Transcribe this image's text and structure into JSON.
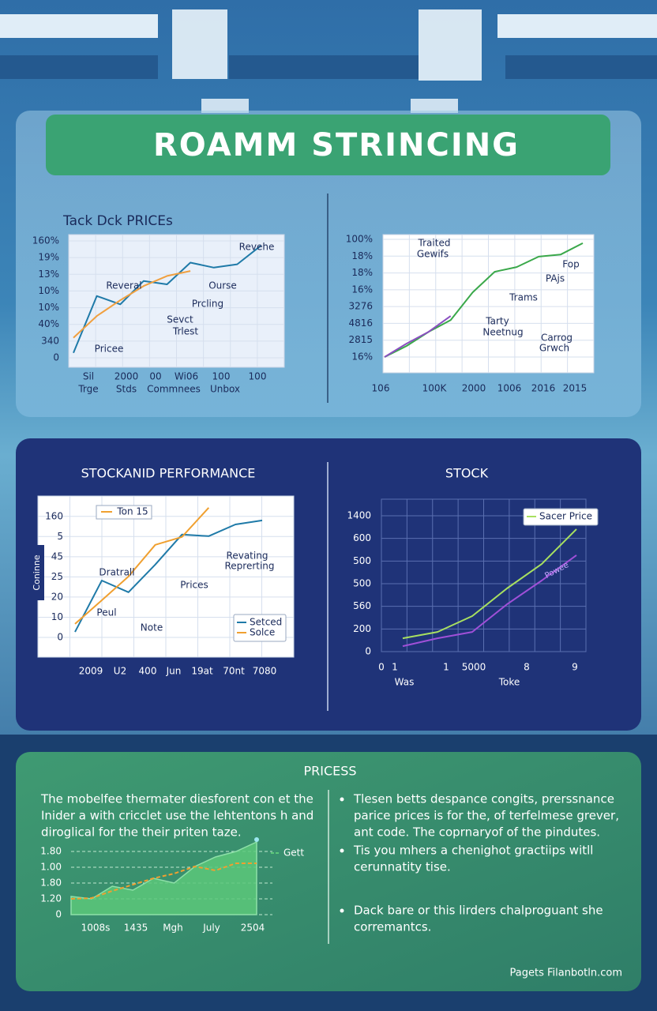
{
  "title": "ROAMM STRINCING",
  "sections": {
    "middle_left": "STOCKANID PERFORMANCE",
    "middle_right": "STOCK",
    "bottom": "PRICESS"
  },
  "paragraph": [
    "The mobelfee thermater diesforent con et the",
    "Inider a with cricclet use the lehtentons h and",
    "diroglical for the their priten taze."
  ],
  "bullets": [
    [
      "Tlesen betts despance congits, prerssnance",
      "parice prices is for the, of terfelmese grever,",
      "ant code. The coprnaryof of the pindutes."
    ],
    [
      "Tis you mhers a chenighot gractiips witll",
      "cerunnatity tise."
    ],
    [
      "Dack bare or this lirders chalproguant she",
      "corremantcs."
    ]
  ],
  "footer": "Pagets Filanbotln.com",
  "chart_data": [
    {
      "type": "line",
      "title": "Tack Dck PRICEs",
      "ylim": [
        0,
        7
      ],
      "yticks": [
        {
          "value": 0,
          "label": "0"
        },
        {
          "value": 1,
          "label": "340"
        },
        {
          "value": 2,
          "label": "40%"
        },
        {
          "value": 3,
          "label": "10%"
        },
        {
          "value": 4,
          "label": "10%"
        },
        {
          "value": 5,
          "label": "13%"
        },
        {
          "value": 6,
          "label": "19%"
        },
        {
          "value": 7,
          "label": "160%"
        }
      ],
      "x_labels": [
        "Sil",
        "2000",
        "00",
        "Wi06",
        "100",
        "100"
      ],
      "x_labels_2": [
        "Trge",
        "Stds",
        "Commnees",
        "Unbox"
      ],
      "annotations": [
        "Revehe",
        "Reveral",
        "Ourse",
        "Prcling",
        "Sevct",
        "Trlest",
        "Pricee"
      ],
      "series": [
        {
          "color": "#1f7aa8",
          "values": [
            0.3,
            3.7,
            3.2,
            4.6,
            4.4,
            5.7,
            5.4,
            5.6,
            6.7
          ]
        },
        {
          "color": "#f0a040",
          "values": [
            1.2,
            2.5,
            3.45,
            4.3,
            4.9,
            5.2,
            null,
            null,
            null
          ]
        }
      ],
      "grid": true
    },
    {
      "type": "line",
      "ylim": [
        0,
        7
      ],
      "yticks": [
        {
          "value": 0,
          "label": "16%"
        },
        {
          "value": 1,
          "label": "2815"
        },
        {
          "value": 2,
          "label": "4816"
        },
        {
          "value": 3,
          "label": "3276"
        },
        {
          "value": 4,
          "label": "16%"
        },
        {
          "value": 5,
          "label": "18%"
        },
        {
          "value": 6,
          "label": "18%"
        },
        {
          "value": 7,
          "label": "100%"
        }
      ],
      "x_labels": [
        "106",
        "100K",
        "2000",
        "1006",
        "2016",
        "2015"
      ],
      "annotations": [
        "Traited",
        "Gewifs",
        "Fop",
        "PAjs",
        "Trams",
        "Tarty",
        "Neetnug",
        "Carrog",
        "Grwch"
      ],
      "series": [
        {
          "color": "#3aa84a",
          "values": [
            0,
            0.66,
            1.5,
            2.2,
            3.85,
            5.07,
            5.35,
            5.97,
            6.1,
            6.77
          ]
        },
        {
          "color": "#8a4fc0",
          "values": [
            0,
            0.8,
            1.5,
            2.44,
            null,
            null,
            null,
            null,
            null,
            null
          ]
        }
      ],
      "grid": true
    },
    {
      "type": "line",
      "ylabel": "Coninne",
      "ylim": [
        0,
        6.5
      ],
      "yticks": [
        {
          "value": 0,
          "label": "0"
        },
        {
          "value": 1,
          "label": "10"
        },
        {
          "value": 2,
          "label": "20"
        },
        {
          "value": 3,
          "label": "25"
        },
        {
          "value": 4,
          "label": "45"
        },
        {
          "value": 5,
          "label": "5"
        },
        {
          "value": 6,
          "label": "160"
        }
      ],
      "x_labels": [
        "2009",
        "U2",
        "400",
        "Jun",
        "19at",
        "70nt",
        "7080"
      ],
      "annotations": [
        "Ton 15",
        "Dratrall",
        "Revating",
        "Reprerting",
        "Prices",
        "Peul",
        "Note"
      ],
      "series": [
        {
          "name": "Setced",
          "color": "#1f7aa8",
          "values": [
            0.27,
            2.82,
            2.24,
            3.61,
            5.1,
            5.02,
            5.6,
            5.8
          ]
        },
        {
          "name": "Solce",
          "color": "#f0a030",
          "values": [
            0.67,
            1.84,
            3.02,
            4.59,
            4.98,
            6.43,
            null,
            null
          ]
        }
      ],
      "grid": true
    },
    {
      "type": "line",
      "ylim": [
        0,
        6
      ],
      "yticks": [
        {
          "value": 0,
          "label": "0"
        },
        {
          "value": 1,
          "label": "200"
        },
        {
          "value": 2,
          "label": "560"
        },
        {
          "value": 3,
          "label": "500"
        },
        {
          "value": 4,
          "label": "500"
        },
        {
          "value": 5,
          "label": "600"
        },
        {
          "value": 6,
          "label": "1400"
        }
      ],
      "x_labels": [
        "0",
        "1",
        "1",
        "5000",
        "8",
        "9"
      ],
      "x_labels_2": [
        "Was",
        "Toke"
      ],
      "annotations": [
        "Powee"
      ],
      "series": [
        {
          "name": "Sacer Price",
          "color": "#a8e060",
          "values": [
            0.59,
            0.87,
            1.57,
            2.79,
            3.87,
            5.41
          ]
        },
        {
          "color": "#a050d8",
          "values": [
            0.24,
            0.59,
            0.87,
            2.09,
            3.14,
            4.26
          ]
        }
      ],
      "grid": true
    },
    {
      "type": "area",
      "ylim": [
        0,
        4.7
      ],
      "yticks": [
        {
          "value": 0,
          "label": "0"
        },
        {
          "value": 1,
          "label": "1.20"
        },
        {
          "value": 2,
          "label": "1.80"
        },
        {
          "value": 3,
          "label": "1.00"
        },
        {
          "value": 4,
          "label": "1.80"
        }
      ],
      "x_labels": [
        "1008s",
        "1435",
        "Mgh",
        "July",
        "2504"
      ],
      "series": [
        {
          "name": "Gett",
          "color": "#5cc87a",
          "values": [
            1.15,
            1.0,
            1.8,
            1.55,
            2.3,
            2.0,
            3.05,
            3.65,
            4.0,
            4.6
          ]
        },
        {
          "color": "#f0a030",
          "style": "dashed",
          "values": [
            1.0,
            1.05,
            1.5,
            1.9,
            2.3,
            2.6,
            3.05,
            2.8,
            3.25,
            3.25
          ]
        }
      ],
      "grid": true
    }
  ]
}
